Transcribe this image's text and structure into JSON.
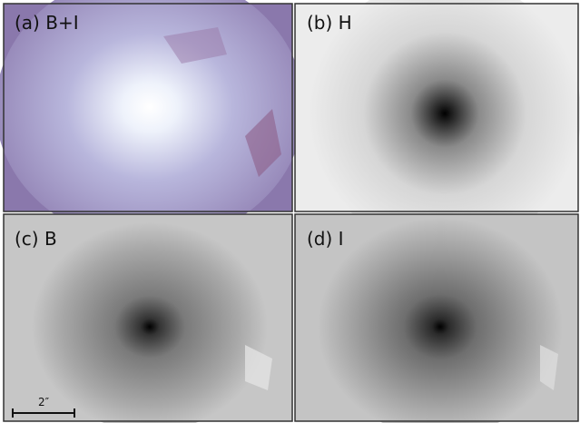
{
  "panels": [
    {
      "label": "(a) B+I"
    },
    {
      "label": "(b) H"
    },
    {
      "label": "(c) B"
    },
    {
      "label": "(d) I"
    }
  ],
  "scale_bar": {
    "label": "2″"
  }
}
